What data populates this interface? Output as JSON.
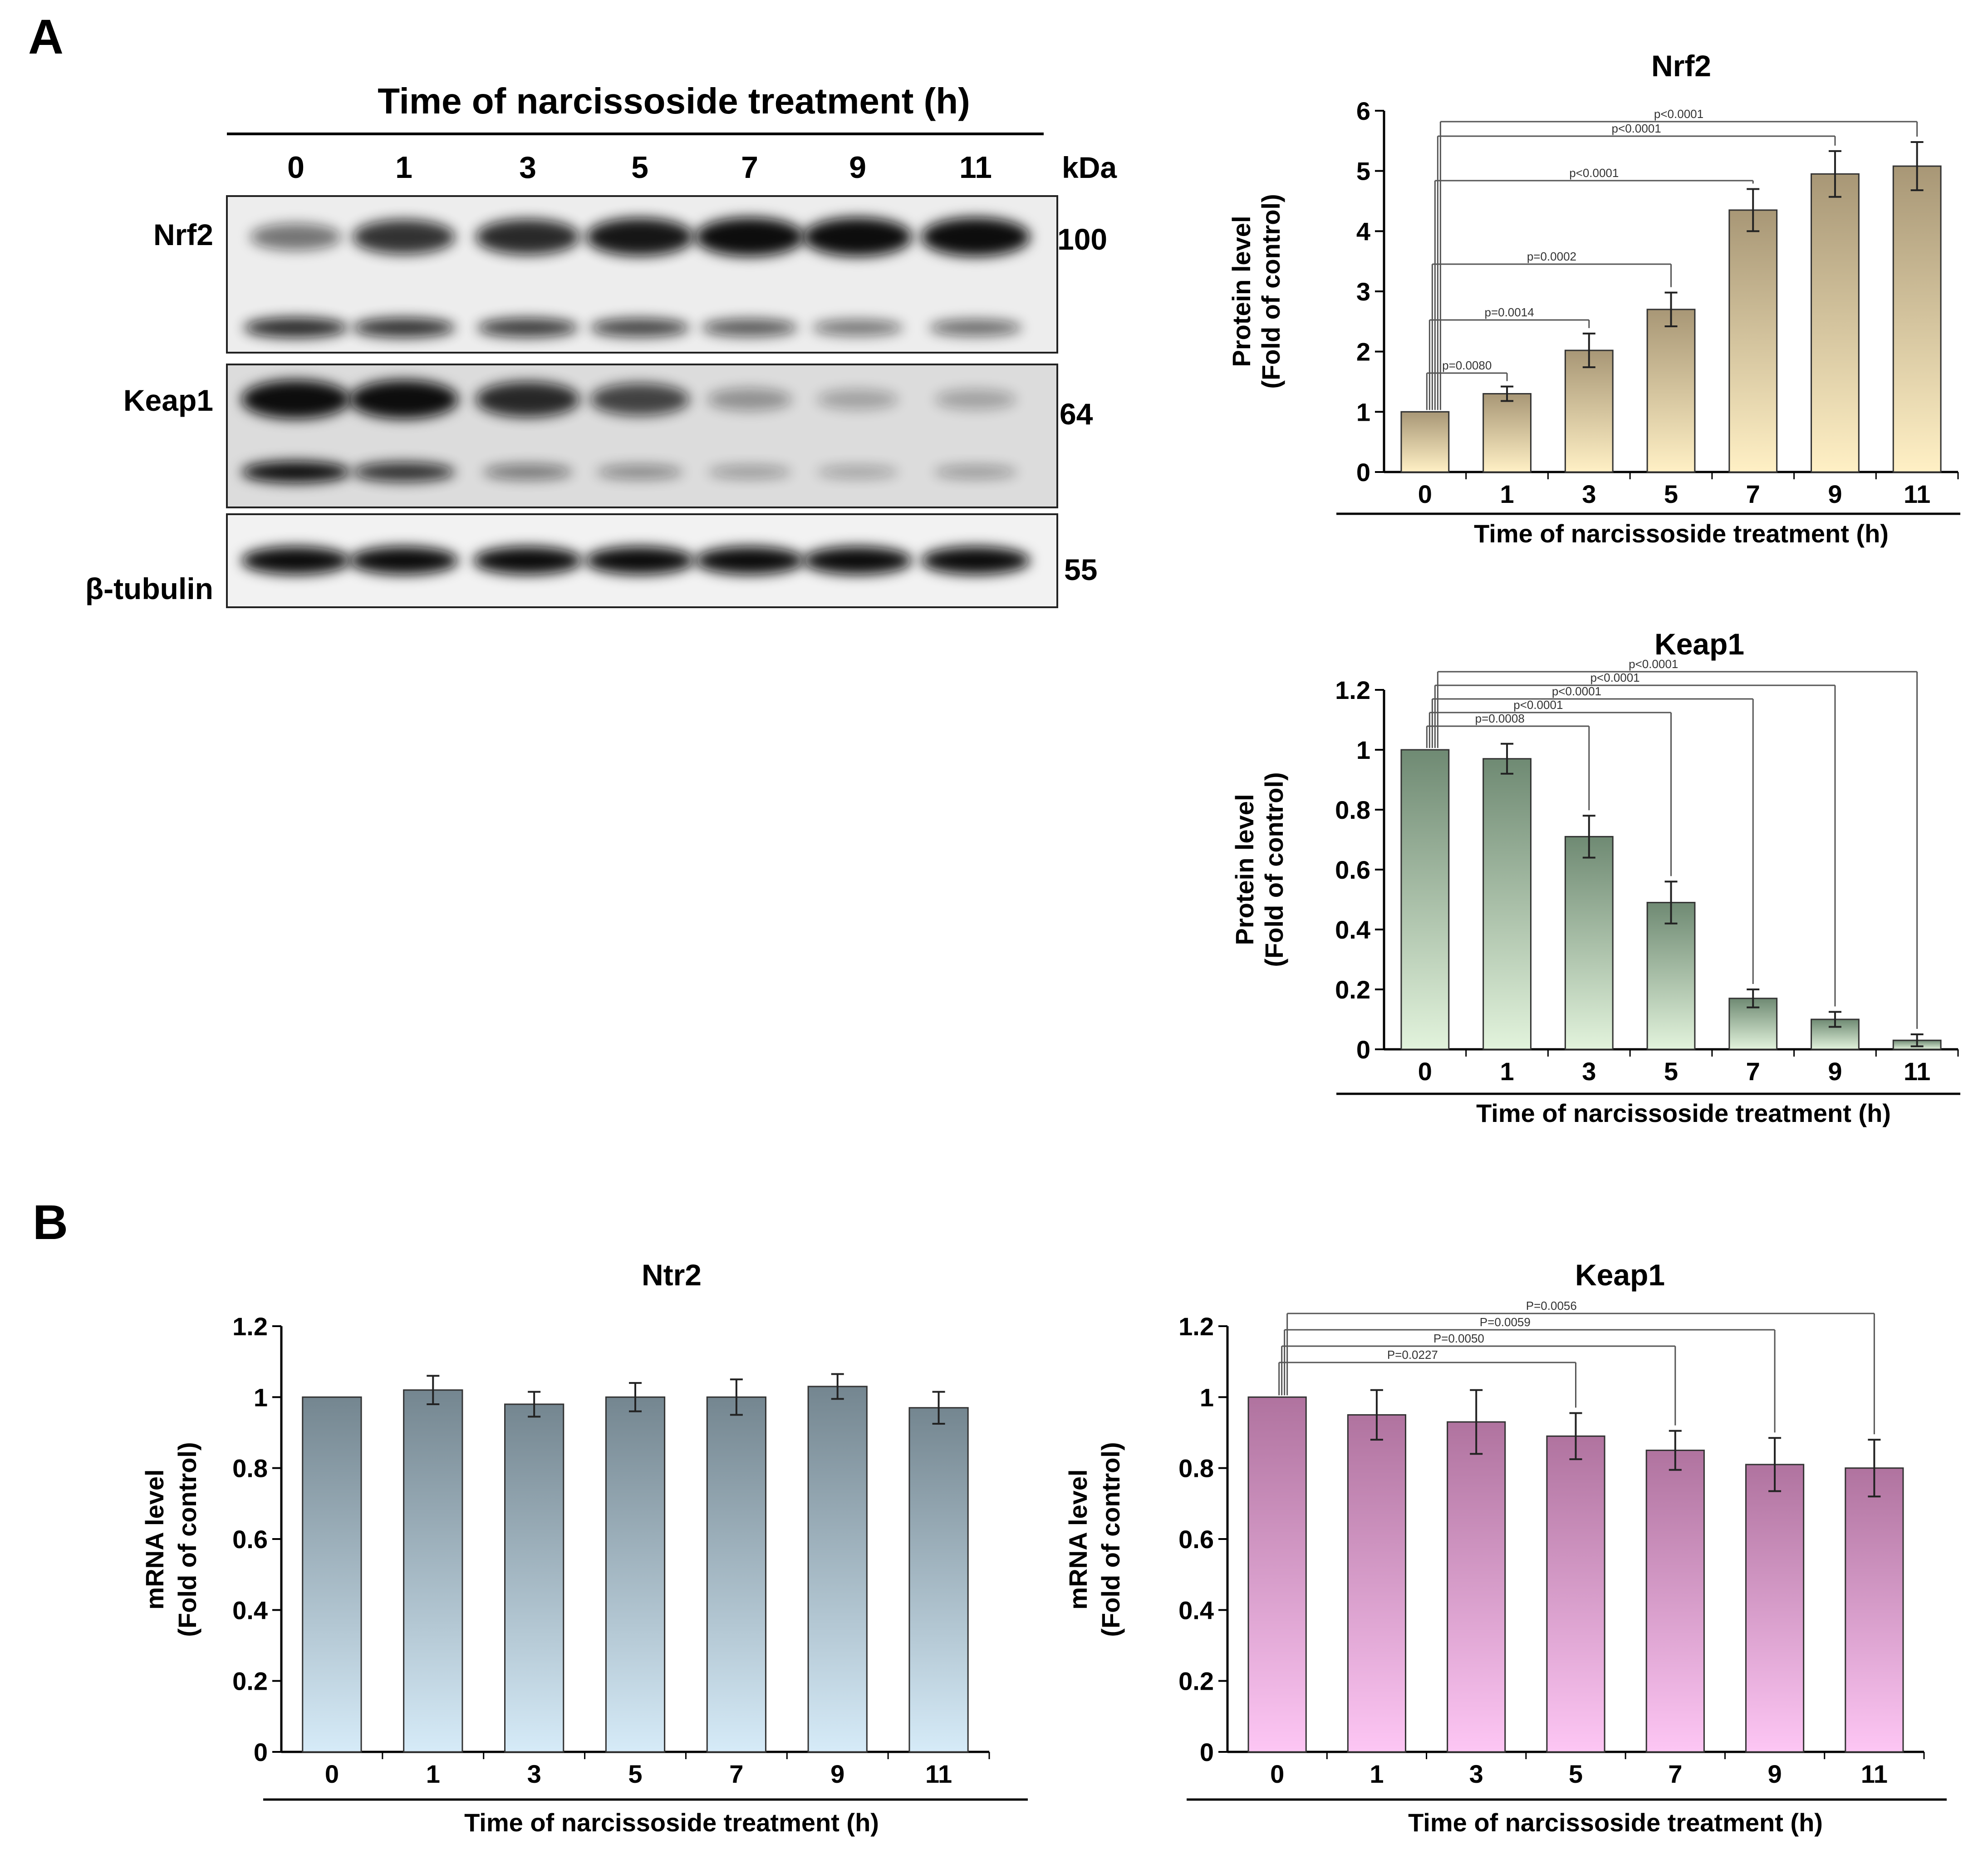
{
  "panels": {
    "a": "A",
    "b": "B"
  },
  "blot": {
    "header": "Time of narcissoside treatment (h)",
    "lanes": [
      "0",
      "1",
      "3",
      "5",
      "7",
      "9",
      "11"
    ],
    "kda_label": "kDa",
    "rows": [
      {
        "label": "Nrf2",
        "kda": "100",
        "upper_band_intensity": [
          0.45,
          0.8,
          0.85,
          0.95,
          1.0,
          1.0,
          1.0
        ],
        "lower_band_intensity": [
          0.85,
          0.8,
          0.75,
          0.7,
          0.6,
          0.45,
          0.5
        ]
      },
      {
        "label": "Keap1",
        "kda": "64",
        "upper_band_intensity": [
          1.0,
          1.0,
          0.85,
          0.7,
          0.25,
          0.15,
          0.15
        ],
        "lower_band_intensity": [
          1.0,
          0.8,
          0.4,
          0.3,
          0.2,
          0.15,
          0.2
        ]
      },
      {
        "label": "β-tubulin",
        "kda": "55",
        "upper_band_intensity": [
          1.0,
          1.0,
          1.0,
          1.0,
          1.0,
          1.0,
          1.0
        ],
        "lower_band_intensity": []
      }
    ]
  },
  "chart_data": [
    {
      "type": "bar",
      "title": "Nrf2",
      "xlabel": "Time of narcissoside treatment (h)",
      "ylabel": [
        "Protein level",
        "(Fold of control)"
      ],
      "categories": [
        "0",
        "1",
        "3",
        "5",
        "7",
        "9",
        "11"
      ],
      "values": [
        1.0,
        1.3,
        2.02,
        2.7,
        4.35,
        4.95,
        5.08
      ],
      "errors": [
        0.0,
        0.12,
        0.28,
        0.28,
        0.35,
        0.38,
        0.4
      ],
      "ylim": [
        0,
        6
      ],
      "yticks": [
        "0",
        "1",
        "2",
        "3",
        "4",
        "5",
        "6"
      ],
      "colors": {
        "top": "#a89776",
        "bottom": "#fff0c5"
      },
      "comparisons": [
        {
          "to": "1",
          "label": "p=0.0080"
        },
        {
          "to": "3",
          "label": "p=0.0014"
        },
        {
          "to": "5",
          "label": "p=0.0002"
        },
        {
          "to": "7",
          "label": "p<0.0001"
        },
        {
          "to": "9",
          "label": "p<0.0001"
        },
        {
          "to": "11",
          "label": "p<0.0001"
        }
      ]
    },
    {
      "type": "bar",
      "title": "Keap1",
      "xlabel": "Time of narcissoside treatment (h)",
      "ylabel": [
        "Protein level",
        "(Fold of control)"
      ],
      "categories": [
        "0",
        "1",
        "3",
        "5",
        "7",
        "9",
        "11"
      ],
      "values": [
        1.0,
        0.97,
        0.71,
        0.49,
        0.17,
        0.1,
        0.03
      ],
      "errors": [
        0.0,
        0.05,
        0.07,
        0.07,
        0.03,
        0.025,
        0.02
      ],
      "ylim": [
        0,
        1.2
      ],
      "yticks": [
        "0",
        "0.2",
        "0.4",
        "0.6",
        "0.8",
        "1",
        "1.2"
      ],
      "colors": {
        "top": "#6f8a73",
        "bottom": "#e2f3dc"
      },
      "comparisons": [
        {
          "to": "3",
          "label": "p=0.0008"
        },
        {
          "to": "5",
          "label": "p<0.0001"
        },
        {
          "to": "7",
          "label": "p<0.0001"
        },
        {
          "to": "9",
          "label": "p<0.0001"
        },
        {
          "to": "11",
          "label": "p<0.0001"
        }
      ]
    },
    {
      "type": "bar",
      "title": "Ntr2",
      "xlabel": "Time of narcissoside treatment (h)",
      "ylabel": [
        "mRNA level",
        "(Fold of control)"
      ],
      "categories": [
        "0",
        "1",
        "3",
        "5",
        "7",
        "9",
        "11"
      ],
      "values": [
        1.0,
        1.02,
        0.98,
        1.0,
        1.0,
        1.03,
        0.97
      ],
      "errors": [
        0.0,
        0.04,
        0.035,
        0.04,
        0.05,
        0.035,
        0.045
      ],
      "ylim": [
        0,
        1.2
      ],
      "yticks": [
        "0",
        "0.2",
        "0.4",
        "0.6",
        "0.8",
        "1",
        "1.2"
      ],
      "colors": {
        "top": "#748690",
        "bottom": "#d6ebf8"
      },
      "comparisons": []
    },
    {
      "type": "bar",
      "title": "Keap1",
      "xlabel": "Time of narcissoside treatment (h)",
      "ylabel": [
        "mRNA level",
        "(Fold of control)"
      ],
      "categories": [
        "0",
        "1",
        "3",
        "5",
        "7",
        "9",
        "11"
      ],
      "values": [
        1.0,
        0.95,
        0.93,
        0.89,
        0.85,
        0.81,
        0.8
      ],
      "errors": [
        0.0,
        0.07,
        0.09,
        0.065,
        0.055,
        0.075,
        0.08
      ],
      "ylim": [
        0,
        1.2
      ],
      "yticks": [
        "0",
        "0.2",
        "0.4",
        "0.6",
        "0.8",
        "1",
        "1.2"
      ],
      "colors": {
        "top": "#b0739f",
        "bottom": "#fdc6f4"
      },
      "comparisons": [
        {
          "to": "5",
          "label": "P=0.0227"
        },
        {
          "to": "7",
          "label": "P=0.0050"
        },
        {
          "to": "9",
          "label": "P=0.0059"
        },
        {
          "to": "11",
          "label": "P=0.0056"
        }
      ]
    }
  ]
}
